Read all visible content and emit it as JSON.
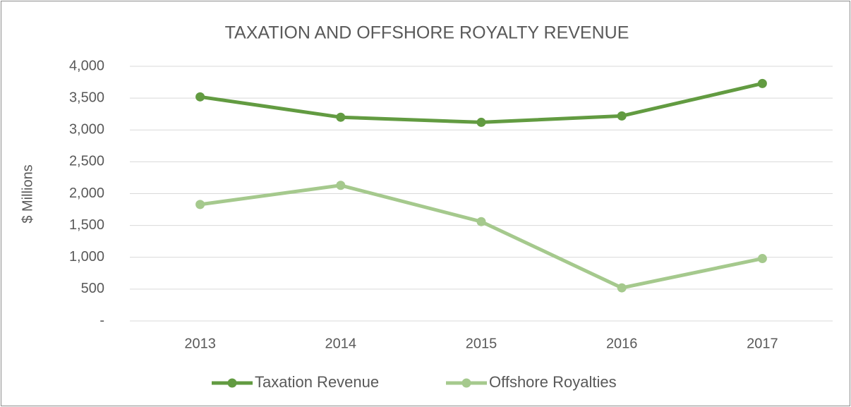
{
  "chart_data": {
    "type": "line",
    "title": "TAXATION AND OFFSHORE ROYALTY REVENUE",
    "y_label": "$ Millions",
    "categories": [
      "2013",
      "2014",
      "2015",
      "2016",
      "2017"
    ],
    "series": [
      {
        "name": "Taxation Revenue",
        "color": "#629b41",
        "values": [
          3520,
          3200,
          3120,
          3220,
          3730
        ]
      },
      {
        "name": "Offshore Royalties",
        "color": "#a5c98d",
        "values": [
          1830,
          2130,
          1560,
          520,
          980
        ]
      }
    ],
    "ylim": [
      0,
      4000
    ],
    "yticks": [
      {
        "value": 0,
        "label": "-"
      },
      500,
      {
        "value": 1000,
        "label": "1,000"
      },
      {
        "value": 1500,
        "label": "1,500"
      },
      {
        "value": 2000,
        "label": "2,000"
      },
      {
        "value": 2500,
        "label": "2,500"
      },
      {
        "value": 3000,
        "label": "3,000"
      },
      {
        "value": 3500,
        "label": "3,500"
      },
      {
        "value": 4000,
        "label": "4,000"
      }
    ],
    "grid": true,
    "legend": "bottom"
  }
}
